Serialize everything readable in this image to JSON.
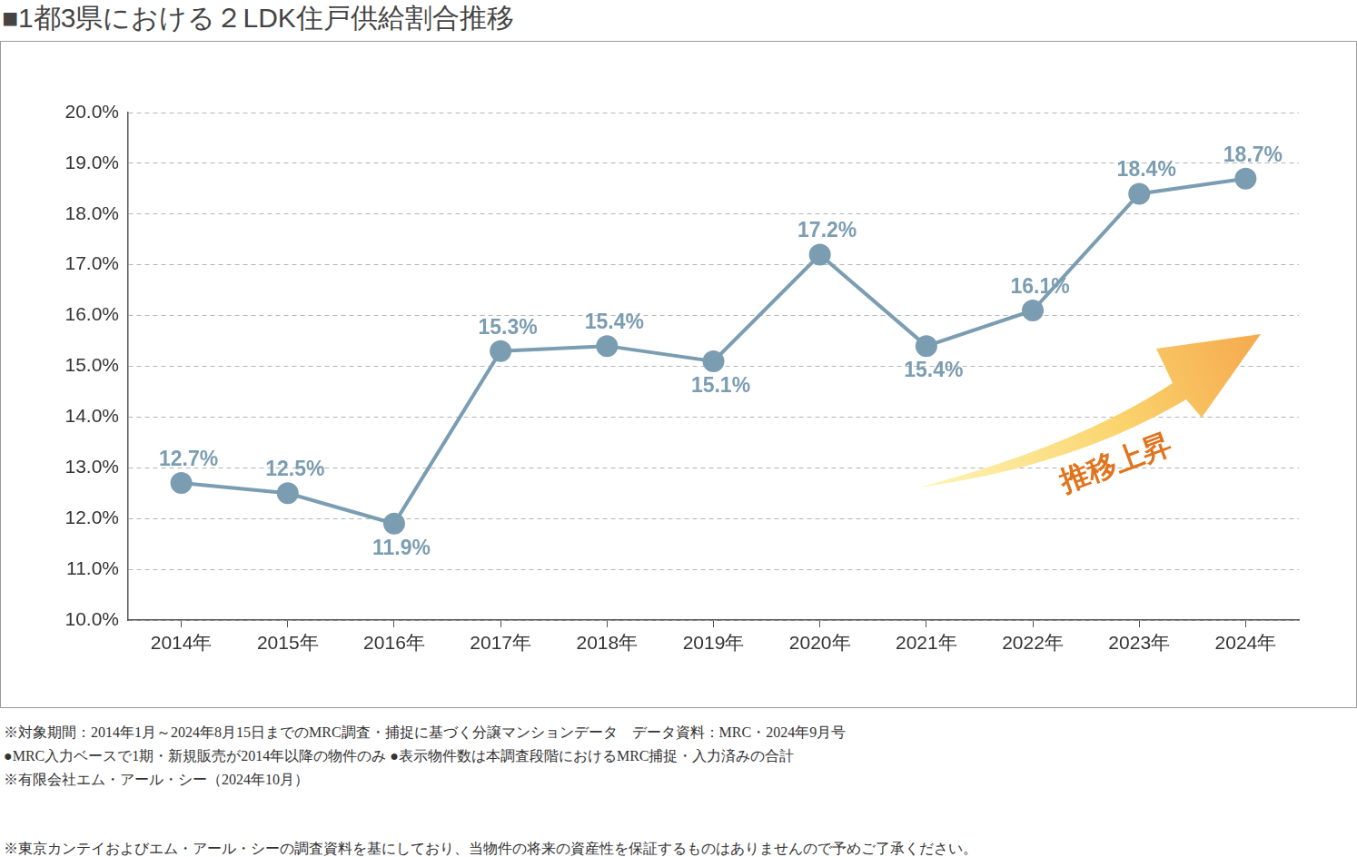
{
  "chart_data": {
    "type": "line",
    "title": "■1都3県における２LDK住戸供給割合推移",
    "categories": [
      "2014年",
      "2015年",
      "2016年",
      "2017年",
      "2018年",
      "2019年",
      "2020年",
      "2021年",
      "2022年",
      "2023年",
      "2024年"
    ],
    "values": [
      12.7,
      12.5,
      11.9,
      15.3,
      15.4,
      15.1,
      17.2,
      15.4,
      16.1,
      18.4,
      18.7
    ],
    "value_labels": [
      "12.7%",
      "12.5%",
      "11.9%",
      "15.3%",
      "15.4%",
      "15.1%",
      "17.2%",
      "15.4%",
      "16.1%",
      "18.4%",
      "18.7%"
    ],
    "color": "#7b9db2",
    "marker": "circle",
    "line_style": "solid",
    "ylim": [
      10,
      20
    ],
    "yticks": [
      {
        "value": 10,
        "label": "10.0%"
      },
      {
        "value": 11,
        "label": "11.0%"
      },
      {
        "value": 12,
        "label": "12.0%"
      },
      {
        "value": 13,
        "label": "13.0%"
      },
      {
        "value": 14,
        "label": "14.0%"
      },
      {
        "value": 15,
        "label": "15.0%"
      },
      {
        "value": 16,
        "label": "16.0%"
      },
      {
        "value": 17,
        "label": "17.0%"
      },
      {
        "value": 18,
        "label": "18.0%"
      },
      {
        "value": 19,
        "label": "19.0%"
      },
      {
        "value": 20,
        "label": "20.0%"
      }
    ],
    "grid": true,
    "data_labels": true,
    "annotations": [
      "推移上昇"
    ],
    "notes": [
      "※対象期間：2014年1月～2024年8月15日までのMRC調査・捕捉に基づく分譲マンションデータ　データ資料：MRC・2024年9月号",
      "●MRC入力ベースで1期・新規販売が2014年以降の物件のみ ●表示物件数は本調査段階におけるMRC捕捉・入力済みの合計",
      "※有限会社エム・アール・シー（2024年10月）",
      "※東京カンテイおよびエム・アール・シーの調査資料を基にしており、当物件の将来の資産性を保証するものはありませんので予めご了承ください。"
    ]
  }
}
